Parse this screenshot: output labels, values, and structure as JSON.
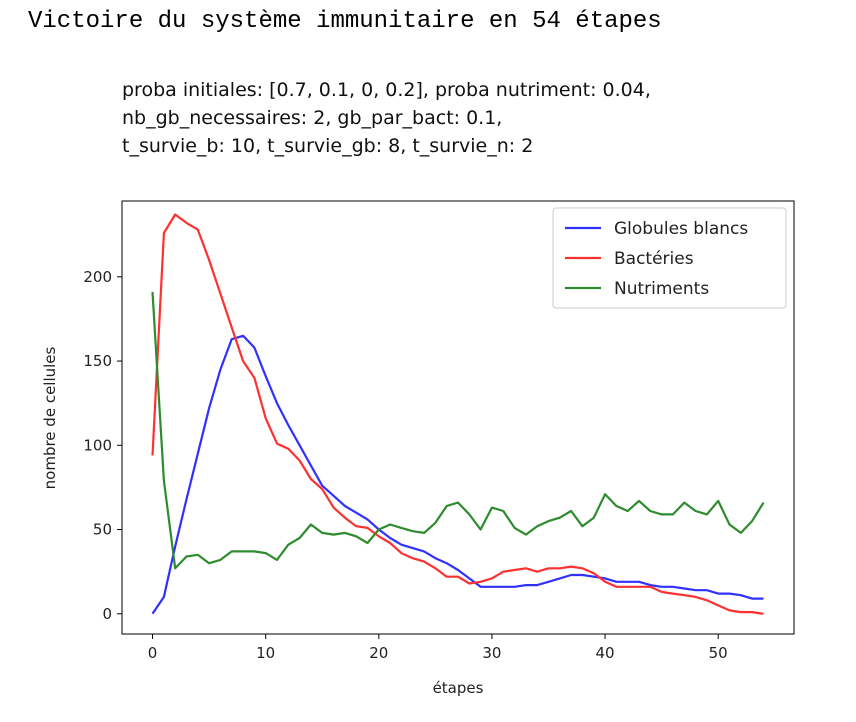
{
  "heading": "Victoire du système immunitaire en 54 étapes",
  "chart_data": {
    "type": "line",
    "title_lines": [
      "proba initiales: [0.7, 0.1, 0, 0.2], proba nutriment: 0.04,",
      "nb_gb_necessaires: 2, gb_par_bact: 0.1,",
      "t_survie_b: 10, t_survie_gb: 8, t_survie_n: 2"
    ],
    "xlabel": "étapes",
    "ylabel": "nombre de cellules",
    "xlim": [
      -2.7,
      56.7
    ],
    "ylim": [
      -12,
      245
    ],
    "xticks": [
      0,
      10,
      20,
      30,
      40,
      50
    ],
    "yticks": [
      0,
      50,
      100,
      150,
      200
    ],
    "grid": false,
    "legend_position": "top-right",
    "x": [
      0,
      1,
      2,
      3,
      4,
      5,
      6,
      7,
      8,
      9,
      10,
      11,
      12,
      13,
      14,
      15,
      16,
      17,
      18,
      19,
      20,
      21,
      22,
      23,
      24,
      25,
      26,
      27,
      28,
      29,
      30,
      31,
      32,
      33,
      34,
      35,
      36,
      37,
      38,
      39,
      40,
      41,
      42,
      43,
      44,
      45,
      46,
      47,
      48,
      49,
      50,
      51,
      52,
      53,
      54
    ],
    "series": [
      {
        "name": "Globules blancs",
        "color": "#3030ff",
        "values": [
          0,
          10,
          40,
          68,
          95,
          122,
          145,
          163,
          165,
          158,
          141,
          125,
          112,
          100,
          88,
          76,
          70,
          64,
          60,
          56,
          50,
          45,
          41,
          39,
          37,
          33,
          30,
          26,
          21,
          16,
          16,
          16,
          16,
          17,
          17,
          19,
          21,
          23,
          23,
          22,
          21,
          19,
          19,
          19,
          17,
          16,
          16,
          15,
          14,
          14,
          12,
          12,
          11,
          9,
          9
        ]
      },
      {
        "name": "Bactéries",
        "color": "#ff3030",
        "values": [
          94,
          226,
          237,
          232,
          228,
          210,
          190,
          170,
          150,
          140,
          116,
          101,
          98,
          91,
          80,
          74,
          63,
          57,
          52,
          51,
          46,
          42,
          36,
          33,
          31,
          27,
          22,
          22,
          18,
          19,
          21,
          25,
          26,
          27,
          25,
          27,
          27,
          28,
          27,
          24,
          19,
          16,
          16,
          16,
          16,
          13,
          12,
          11,
          10,
          8,
          5,
          2,
          1,
          1,
          0
        ]
      },
      {
        "name": "Nutriments",
        "color": "#2e8b2e",
        "values": [
          191,
          79,
          27,
          34,
          35,
          30,
          32,
          37,
          37,
          37,
          36,
          32,
          41,
          45,
          53,
          48,
          47,
          48,
          46,
          42,
          50,
          53,
          51,
          49,
          48,
          54,
          64,
          66,
          59,
          50,
          63,
          61,
          51,
          47,
          52,
          55,
          57,
          61,
          52,
          57,
          71,
          64,
          61,
          67,
          61,
          59,
          59,
          66,
          61,
          59,
          67,
          53,
          48,
          55,
          66
        ]
      }
    ]
  }
}
